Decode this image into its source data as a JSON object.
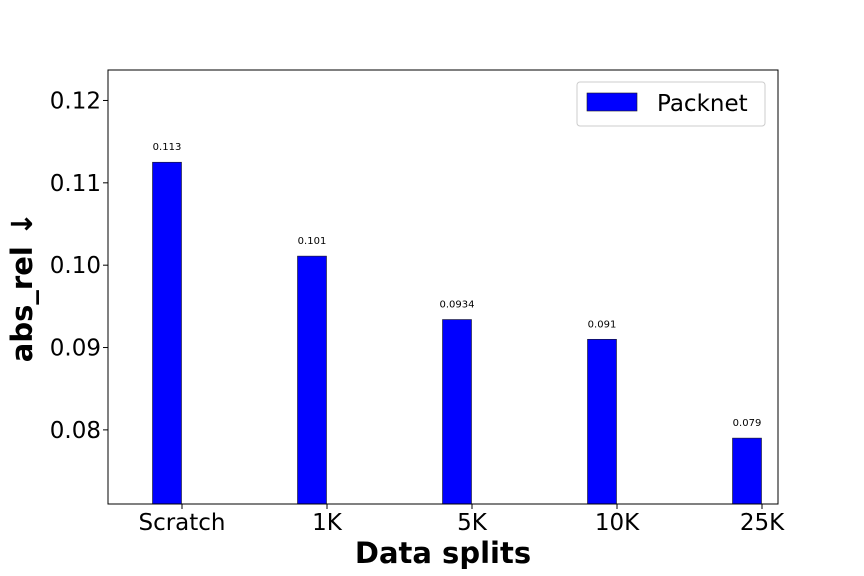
{
  "chart_data": {
    "type": "bar",
    "categories": [
      "Scratch",
      "1K",
      "5K",
      "10K",
      "25K"
    ],
    "series": [
      {
        "name": "Packnet",
        "values": [
          0.1125,
          0.1011,
          0.0934,
          0.091,
          0.079
        ],
        "data_labels": [
          "0.113",
          "0.101",
          "0.0934",
          "0.091",
          "0.079"
        ],
        "color": "#0000ff"
      }
    ],
    "title": "",
    "xlabel": "Data splits",
    "ylabel": "abs_rel ↓",
    "ylim": [
      0.071,
      0.1237
    ],
    "yticks": [
      0.08,
      0.09,
      0.1,
      0.11,
      0.12
    ],
    "ytick_labels": [
      "0.08",
      "0.09",
      "0.10",
      "0.11",
      "0.12"
    ],
    "grid": false,
    "legend_position": "upper right"
  }
}
